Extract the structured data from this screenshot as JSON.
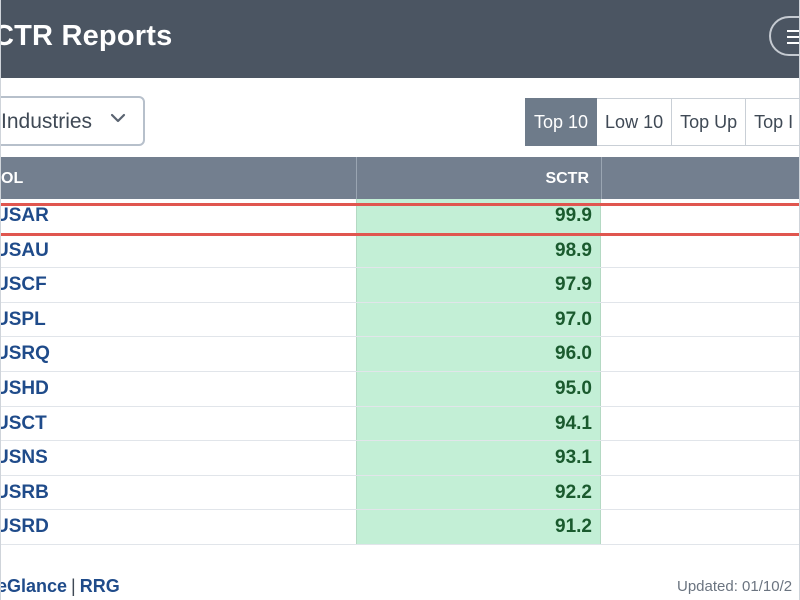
{
  "header": {
    "title": "CTR Reports"
  },
  "controls": {
    "group_select_value": "Industries",
    "tabs": [
      {
        "label": "Top 10",
        "active": true
      },
      {
        "label": "Low 10",
        "active": false
      },
      {
        "label": "Top Up",
        "active": false
      },
      {
        "label": "Top I",
        "active": false
      }
    ]
  },
  "table": {
    "columns": [
      "OL",
      "SCTR",
      ""
    ],
    "rows": [
      {
        "symbol": "USAR",
        "sctr": "99.9"
      },
      {
        "symbol": "USAU",
        "sctr": "98.9"
      },
      {
        "symbol": "USCF",
        "sctr": "97.9"
      },
      {
        "symbol": "USPL",
        "sctr": "97.0"
      },
      {
        "symbol": "USRQ",
        "sctr": "96.0"
      },
      {
        "symbol": "USHD",
        "sctr": "95.0"
      },
      {
        "symbol": "USCT",
        "sctr": "94.1"
      },
      {
        "symbol": "USNS",
        "sctr": "93.1"
      },
      {
        "symbol": "USRB",
        "sctr": "92.2"
      },
      {
        "symbol": "USRD",
        "sctr": "91.2"
      }
    ],
    "highlighted_row_index": 0
  },
  "footer": {
    "link_1": "eGlance",
    "separator": "|",
    "link_2": "RRG",
    "updated_text": "Updated: 01/10/2"
  },
  "colors": {
    "header_bg": "#4b5562",
    "table_header_bg": "#737f8f",
    "sctr_cell_bg": "#c3efd6",
    "highlight": "#e0564f",
    "link": "#1f4b8a"
  }
}
